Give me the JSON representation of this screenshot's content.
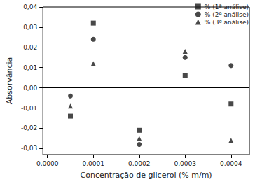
{
  "chart_data": {
    "type": "scatter",
    "x_label": "Concentração de glicerol (% m/m)",
    "y_label": "Absorvância",
    "series": [
      {
        "name": "% (1ª análise)",
        "color": "#1a1a1a",
        "marker": "square",
        "x": [
          5e-05,
          0.0001,
          0.0002,
          0.0003,
          0.0004
        ],
        "values": [
          -0.014,
          0.032,
          -0.021,
          0.006,
          -0.008
        ]
      },
      {
        "name": "% (2ª análise)",
        "color": "#1a1a1a",
        "marker": "circle",
        "x": [
          5e-05,
          0.0001,
          0.0002,
          0.0003,
          0.0004
        ],
        "values": [
          -0.004,
          0.024,
          -0.028,
          0.015,
          0.011
        ]
      },
      {
        "name": "% (3ª análise)",
        "color": "#1a1a1a",
        "marker": "triangle",
        "x": [
          5e-05,
          0.0001,
          0.0002,
          0.0003,
          0.0004
        ],
        "values": [
          -0.009,
          0.012,
          -0.025,
          0.018,
          -0.026
        ]
      }
    ],
    "xlim": [
      -1e-05,
      0.00044
    ],
    "xticks": [
      {
        "value": 0,
        "label": "0,0000"
      },
      {
        "value": 0.0001,
        "label": "0,0001"
      },
      {
        "value": 0.0002,
        "label": "0,0002"
      },
      {
        "value": 0.0003,
        "label": "0,0003"
      },
      {
        "value": 0.0004,
        "label": "0,0004"
      }
    ],
    "ylim": [
      -0.033,
      0.04
    ],
    "yticks": [
      {
        "value": -0.03,
        "label": "-0,03"
      },
      {
        "value": -0.02,
        "label": "-0,02"
      },
      {
        "value": -0.01,
        "label": "-0,01"
      },
      {
        "value": 0,
        "label": "0,00"
      },
      {
        "value": 0.01,
        "label": "0,01"
      },
      {
        "value": 0.02,
        "label": "0,02"
      },
      {
        "value": 0.03,
        "label": "0,03"
      },
      {
        "value": 0.04,
        "label": "0,04"
      }
    ],
    "hline": 0,
    "grid": false,
    "legend": "upper right"
  }
}
